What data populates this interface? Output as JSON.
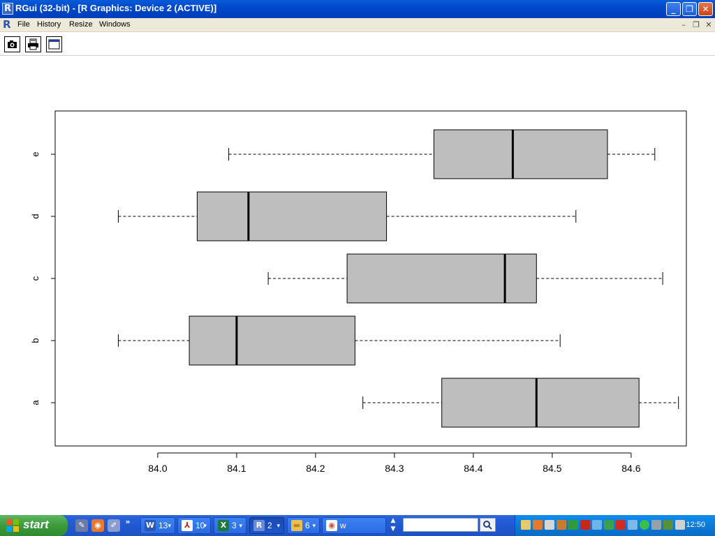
{
  "window": {
    "title": "RGui (32-bit) - [R Graphics: Device 2 (ACTIVE)]",
    "app_icon_letter": "R",
    "minimize_label": "_",
    "maximize_label": "❐",
    "close_label": "✕"
  },
  "menu": {
    "items": [
      "File",
      "History",
      "Resize",
      "Windows"
    ],
    "mdi_minimize": "–",
    "mdi_restore": "❐",
    "mdi_close": "✕"
  },
  "toolbar": {
    "buttons": [
      "camera-icon",
      "printer-icon",
      "window-icon"
    ]
  },
  "chart_data": {
    "type": "boxplot",
    "orientation": "horizontal",
    "categories": [
      "a",
      "b",
      "c",
      "d",
      "e"
    ],
    "boxes": [
      {
        "name": "a",
        "min": 84.26,
        "q1": 84.36,
        "median": 84.48,
        "q3": 84.61,
        "max": 84.66
      },
      {
        "name": "b",
        "min": 83.95,
        "q1": 84.04,
        "median": 84.1,
        "q3": 84.25,
        "max": 84.51
      },
      {
        "name": "c",
        "min": 84.14,
        "q1": 84.24,
        "median": 84.44,
        "q3": 84.48,
        "max": 84.64
      },
      {
        "name": "d",
        "min": 83.95,
        "q1": 84.05,
        "median": 84.115,
        "q3": 84.29,
        "max": 84.53
      },
      {
        "name": "e",
        "min": 84.09,
        "q1": 84.35,
        "median": 84.45,
        "q3": 84.57,
        "max": 84.63
      }
    ],
    "xticks": [
      "84.0",
      "84.1",
      "84.2",
      "84.3",
      "84.4",
      "84.5",
      "84.6"
    ],
    "xlim": [
      83.87,
      84.67
    ],
    "box_fill": "#bebebe",
    "title": "",
    "xlabel": "",
    "ylabel": ""
  },
  "taskbar": {
    "start_label": "start",
    "quick_launch": [
      "pencil-icon",
      "firefox-icon",
      "eraser-icon"
    ],
    "more_label": "»",
    "tasks": [
      {
        "icon": "word-icon",
        "letter": "W",
        "count": "13",
        "color": "#2a57b5"
      },
      {
        "icon": "acrobat-icon",
        "letter": "⅄",
        "count": "10",
        "color": "#c8261b"
      },
      {
        "icon": "excel-icon",
        "letter": "X",
        "count": "3",
        "color": "#1d7a3a"
      },
      {
        "icon": "r-icon",
        "letter": "R",
        "count": "2",
        "color": "#1c48a8"
      },
      {
        "icon": "folder-icon",
        "letter": "▬",
        "count": "6",
        "color": "#e6c14d"
      },
      {
        "icon": "chrome-icon",
        "letter": "◉",
        "count": "w",
        "color": "#d94a38"
      }
    ],
    "search_placeholder": "",
    "tray_icons": [
      "mail-icon",
      "firefox-icon",
      "network-icon",
      "update-icon",
      "drive-icon",
      "acrobat-icon",
      "dropbox-icon",
      "media-icon",
      "ati-icon",
      "att-icon",
      "check-icon",
      "skype-icon",
      "wrench-icon",
      "safe-remove-icon"
    ],
    "clock": "12:50"
  }
}
